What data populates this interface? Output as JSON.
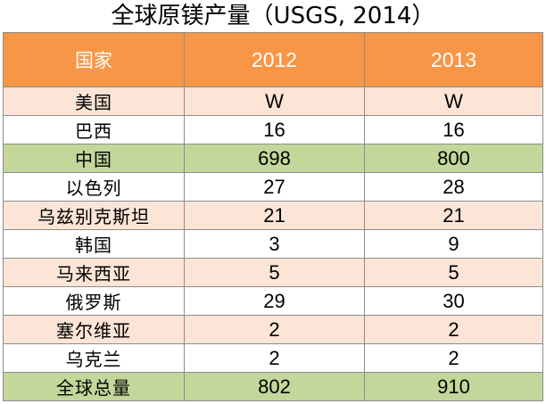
{
  "title": "全球原镁产量（USGS, 2014）",
  "header": {
    "country": "国家",
    "y2012": "2012",
    "y2013": "2013"
  },
  "rows": [
    {
      "country": "美国",
      "y2012": "W",
      "y2013": "W",
      "style": "peach"
    },
    {
      "country": "巴西",
      "y2012": "16",
      "y2013": "16",
      "style": "white"
    },
    {
      "country": "中国",
      "y2012": "698",
      "y2013": "800",
      "style": "green"
    },
    {
      "country": "以色列",
      "y2012": "27",
      "y2013": "28",
      "style": "white"
    },
    {
      "country": "乌兹别克斯坦",
      "y2012": "21",
      "y2013": "21",
      "style": "peach"
    },
    {
      "country": "韩国",
      "y2012": "3",
      "y2013": "9",
      "style": "white"
    },
    {
      "country": "马来西亚",
      "y2012": "5",
      "y2013": "5",
      "style": "peach"
    },
    {
      "country": "俄罗斯",
      "y2012": "29",
      "y2013": "30",
      "style": "white"
    },
    {
      "country": "塞尔维亚",
      "y2012": "2",
      "y2013": "2",
      "style": "peach"
    },
    {
      "country": "乌克兰",
      "y2012": "2",
      "y2013": "2",
      "style": "white"
    },
    {
      "country": "全球总量",
      "y2012": "802",
      "y2013": "910",
      "style": "green"
    }
  ],
  "colors": {
    "header": "#f79646",
    "peach": "#fce4d6",
    "green": "#c4d79b",
    "border": "#8c8c8c"
  }
}
